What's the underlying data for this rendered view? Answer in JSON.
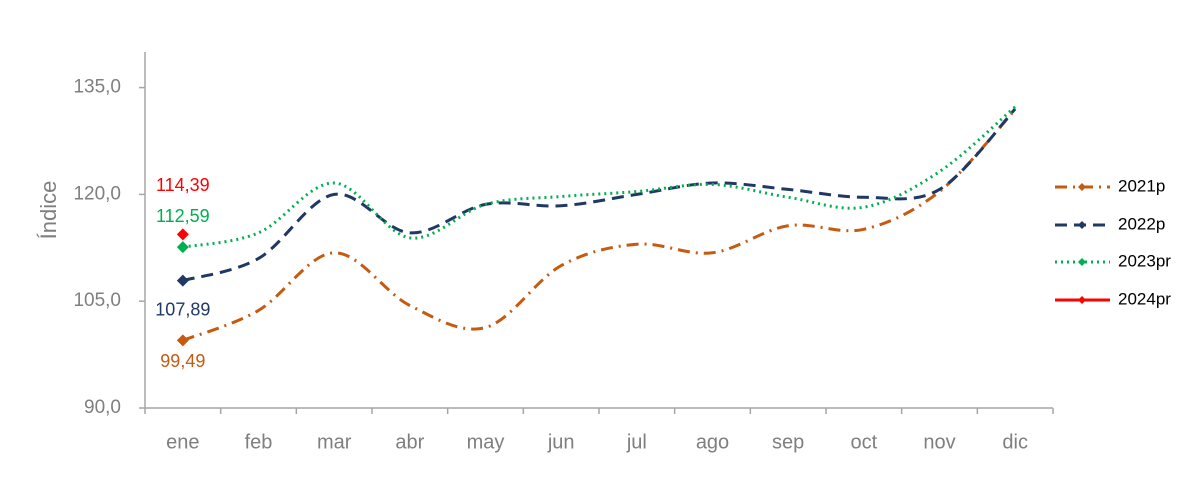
{
  "chart_data": {
    "type": "line",
    "y_label": "Índice",
    "categories": [
      "ene",
      "feb",
      "mar",
      "abr",
      "may",
      "jun",
      "jul",
      "ago",
      "sep",
      "oct",
      "nov",
      "dic"
    ],
    "ylim": [
      90,
      140
    ],
    "yticks": [
      {
        "value": 90,
        "label": "90,0"
      },
      {
        "value": 105,
        "label": "105,0"
      },
      {
        "value": 120,
        "label": "120,0"
      },
      {
        "value": 135,
        "label": "135,0"
      }
    ],
    "legend": "right",
    "series": [
      {
        "name": "2021p",
        "color": "#c55a11",
        "style": "dashdot",
        "values": [
          99.49,
          103.7,
          111.8,
          104.4,
          101.3,
          110,
          113,
          111.8,
          115.6,
          115.1,
          120.4,
          131.9
        ],
        "value_labels": [
          "99,49",
          null,
          null,
          null,
          null,
          null,
          null,
          null,
          null,
          null,
          null,
          null
        ]
      },
      {
        "name": "2022p",
        "color": "#1f3864",
        "style": "dashed",
        "values": [
          107.89,
          111,
          120,
          114.6,
          118.6,
          118.4,
          120,
          121.6,
          120.7,
          119.6,
          120.7,
          132
        ],
        "value_labels": [
          "107,89",
          null,
          null,
          null,
          null,
          null,
          null,
          null,
          null,
          null,
          null,
          null
        ]
      },
      {
        "name": "2023pr",
        "color": "#00b050",
        "style": "dotted",
        "values": [
          112.59,
          114.6,
          121.6,
          113.9,
          118.6,
          119.7,
          120.4,
          121.4,
          119.6,
          118.2,
          123.2,
          132.3
        ],
        "value_labels": [
          "112,59",
          null,
          null,
          null,
          null,
          null,
          null,
          null,
          null,
          null,
          null,
          null
        ]
      },
      {
        "name": "2024pr",
        "color": "#ff0000",
        "style": "solid",
        "values": [
          114.39,
          null,
          null,
          null,
          null,
          null,
          null,
          null,
          null,
          null,
          null,
          null
        ],
        "value_labels": [
          "114,39",
          null,
          null,
          null,
          null,
          null,
          null,
          null,
          null,
          null,
          null,
          null
        ]
      }
    ]
  }
}
